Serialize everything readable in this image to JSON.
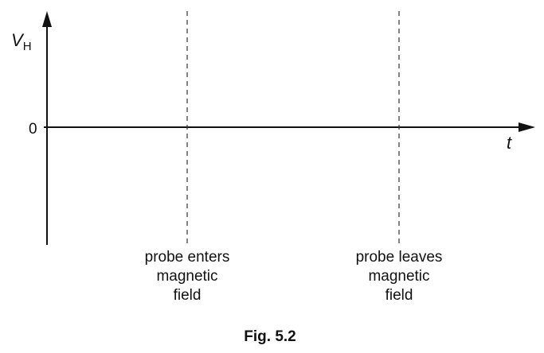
{
  "y_axis": {
    "label": "V",
    "label_subscript": "H",
    "zero_label": "0"
  },
  "x_axis": {
    "label": "t"
  },
  "markers": [
    {
      "lines": [
        "probe enters",
        "magnetic",
        "field"
      ]
    },
    {
      "lines": [
        "probe leaves",
        "magnetic",
        "field"
      ]
    }
  ],
  "caption": "Fig. 5.2"
}
